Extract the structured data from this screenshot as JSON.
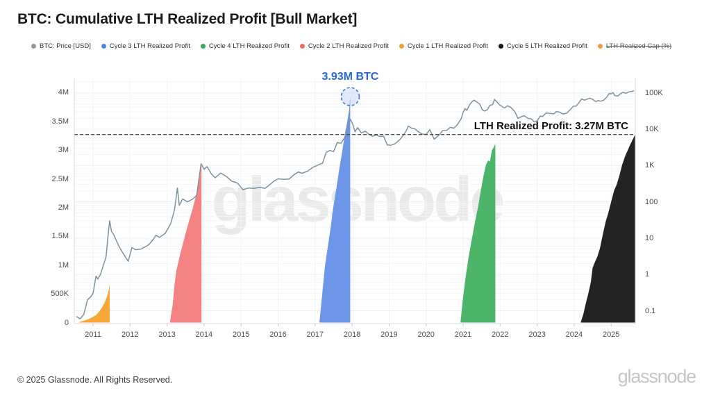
{
  "page": {
    "title": "BTC: Cumulative LTH Realized Profit [Bull Market]",
    "watermark": "glassnode",
    "footer_copyright": "© 2025 Glassnode. All Rights Reserved.",
    "footer_logo": "glassnode"
  },
  "legend": {
    "items": [
      {
        "label": "BTC: Price [USD]",
        "color": "#8b9aa3",
        "strikethrough": false
      },
      {
        "label": "Cycle 3 LTH Realized Profit",
        "color": "#4f86e4",
        "strikethrough": false
      },
      {
        "label": "Cycle 4 LTH Realized Profit",
        "color": "#33ad59",
        "strikethrough": false
      },
      {
        "label": "Cycle 2 LTH Realized Profit",
        "color": "#ee6c6c",
        "strikethrough": false
      },
      {
        "label": "Cycle 1 LTH Realized Profit",
        "color": "#f29d38",
        "strikethrough": false
      },
      {
        "label": "Cycle 5 LTH Realized Profit",
        "color": "#141414",
        "strikethrough": false
      },
      {
        "label": "LTH Realized Cap (%)",
        "color": "#f29d38",
        "strikethrough": true
      }
    ]
  },
  "chart_data": {
    "type": "area",
    "title": "BTC: Cumulative LTH Realized Profit [Bull Market]",
    "grid": true,
    "legend_position": "top",
    "x_axis": {
      "ticks": [
        2011,
        2012,
        2013,
        2014,
        2015,
        2016,
        2017,
        2018,
        2019,
        2020,
        2021,
        2022,
        2023,
        2024,
        2025
      ],
      "tick_labels": [
        "2011",
        "2012",
        "2013",
        "2014",
        "2015",
        "2016",
        "2017",
        "2018",
        "2019",
        "2020",
        "2021",
        "2022",
        "2023",
        "2024",
        "2025"
      ],
      "range": [
        2010.49,
        2025.66
      ]
    },
    "y_axis_left": {
      "unit": "BTC",
      "scale": "linear",
      "ticks": [
        0,
        0.5,
        1,
        1.5,
        2,
        2.5,
        3,
        3.5,
        4
      ],
      "tick_labels": [
        "0",
        "500K",
        "1M",
        "1.5M",
        "2M",
        "2.5M",
        "3M",
        "3.5M",
        "4M"
      ],
      "range_m": [
        0,
        4.26
      ]
    },
    "y_axis_right": {
      "unit": "USD",
      "scale": "log",
      "ticks": [
        0.1,
        1,
        10,
        100,
        1000,
        10000,
        100000
      ],
      "tick_labels": [
        "0.1",
        "1",
        "10",
        "100",
        "1K",
        "10K",
        "100K"
      ]
    },
    "annotations": {
      "peak_label": "3.93M BTC",
      "peak_point": {
        "year": 2017.95,
        "value_m": 3.93
      },
      "current_label": "LTH Realized Profit: 3.27M BTC",
      "current_value_m": 3.27,
      "dashed_line_color": "#3a3a3a",
      "peak_color": "#2766d2"
    },
    "price_series": {
      "name": "BTC: Price [USD]",
      "color": "#7e929d",
      "points": [
        [
          2010.55,
          0.07
        ],
        [
          2010.65,
          0.06
        ],
        [
          2010.75,
          0.08
        ],
        [
          2010.85,
          0.2
        ],
        [
          2010.95,
          0.25
        ],
        [
          2011.0,
          0.3
        ],
        [
          2011.08,
          0.9
        ],
        [
          2011.13,
          0.75
        ],
        [
          2011.2,
          1.0
        ],
        [
          2011.28,
          1.8
        ],
        [
          2011.35,
          3.0
        ],
        [
          2011.42,
          17
        ],
        [
          2011.45,
          30
        ],
        [
          2011.5,
          15
        ],
        [
          2011.55,
          13
        ],
        [
          2011.62,
          9
        ],
        [
          2011.7,
          6
        ],
        [
          2011.8,
          4
        ],
        [
          2011.95,
          2.3
        ],
        [
          2012.05,
          5.5
        ],
        [
          2012.15,
          4.8
        ],
        [
          2012.3,
          5.0
        ],
        [
          2012.5,
          6.5
        ],
        [
          2012.62,
          9
        ],
        [
          2012.7,
          12
        ],
        [
          2012.8,
          10.5
        ],
        [
          2012.95,
          13.5
        ],
        [
          2013.1,
          25
        ],
        [
          2013.2,
          60
        ],
        [
          2013.28,
          240
        ],
        [
          2013.33,
          80
        ],
        [
          2013.42,
          120
        ],
        [
          2013.55,
          100
        ],
        [
          2013.7,
          120
        ],
        [
          2013.8,
          150
        ],
        [
          2013.92,
          1120
        ],
        [
          2014.0,
          780
        ],
        [
          2014.08,
          930
        ],
        [
          2014.2,
          580
        ],
        [
          2014.3,
          460
        ],
        [
          2014.45,
          620
        ],
        [
          2014.6,
          500
        ],
        [
          2014.75,
          370
        ],
        [
          2014.9,
          330
        ],
        [
          2015.05,
          215
        ],
        [
          2015.2,
          240
        ],
        [
          2015.35,
          235
        ],
        [
          2015.5,
          250
        ],
        [
          2015.65,
          235
        ],
        [
          2015.8,
          310
        ],
        [
          2015.9,
          380
        ],
        [
          2016.0,
          430
        ],
        [
          2016.15,
          415
        ],
        [
          2016.3,
          425
        ],
        [
          2016.45,
          580
        ],
        [
          2016.55,
          660
        ],
        [
          2016.65,
          610
        ],
        [
          2016.8,
          700
        ],
        [
          2016.95,
          900
        ],
        [
          2017.1,
          1050
        ],
        [
          2017.2,
          1150
        ],
        [
          2017.3,
          2300
        ],
        [
          2017.4,
          2600
        ],
        [
          2017.5,
          2400
        ],
        [
          2017.6,
          4300
        ],
        [
          2017.7,
          4100
        ],
        [
          2017.78,
          5500
        ],
        [
          2017.85,
          7500
        ],
        [
          2017.95,
          19000
        ],
        [
          2018.02,
          13500
        ],
        [
          2018.08,
          8500
        ],
        [
          2018.15,
          11000
        ],
        [
          2018.25,
          7800
        ],
        [
          2018.35,
          8800
        ],
        [
          2018.45,
          7300
        ],
        [
          2018.55,
          6400
        ],
        [
          2018.65,
          6900
        ],
        [
          2018.75,
          6300
        ],
        [
          2018.85,
          6400
        ],
        [
          2018.95,
          3700
        ],
        [
          2019.05,
          3600
        ],
        [
          2019.15,
          3900
        ],
        [
          2019.3,
          5300
        ],
        [
          2019.45,
          8500
        ],
        [
          2019.52,
          12200
        ],
        [
          2019.6,
          10800
        ],
        [
          2019.7,
          10200
        ],
        [
          2019.8,
          8300
        ],
        [
          2019.9,
          7300
        ],
        [
          2020.0,
          7200
        ],
        [
          2020.1,
          9700
        ],
        [
          2020.22,
          5300
        ],
        [
          2020.35,
          6900
        ],
        [
          2020.45,
          9100
        ],
        [
          2020.55,
          9200
        ],
        [
          2020.65,
          11200
        ],
        [
          2020.75,
          10700
        ],
        [
          2020.85,
          13500
        ],
        [
          2020.95,
          19500
        ],
        [
          2021.0,
          29000
        ],
        [
          2021.05,
          37000
        ],
        [
          2021.1,
          33000
        ],
        [
          2021.18,
          48000
        ],
        [
          2021.25,
          58000
        ],
        [
          2021.3,
          63000
        ],
        [
          2021.38,
          55000
        ],
        [
          2021.45,
          49000
        ],
        [
          2021.52,
          34000
        ],
        [
          2021.58,
          31500
        ],
        [
          2021.65,
          34000
        ],
        [
          2021.72,
          45000
        ],
        [
          2021.8,
          48000
        ],
        [
          2021.85,
          66000
        ],
        [
          2021.9,
          58000
        ],
        [
          2021.98,
          47000
        ],
        [
          2022.05,
          42000
        ],
        [
          2022.12,
          38500
        ],
        [
          2022.2,
          44000
        ],
        [
          2022.3,
          39000
        ],
        [
          2022.4,
          30000
        ],
        [
          2022.48,
          20000
        ],
        [
          2022.55,
          21500
        ],
        [
          2022.65,
          23500
        ],
        [
          2022.75,
          20000
        ],
        [
          2022.85,
          19000
        ],
        [
          2022.92,
          16000
        ],
        [
          2023.0,
          16800
        ],
        [
          2023.08,
          23000
        ],
        [
          2023.15,
          22500
        ],
        [
          2023.25,
          28000
        ],
        [
          2023.35,
          27000
        ],
        [
          2023.45,
          26500
        ],
        [
          2023.52,
          30500
        ],
        [
          2023.6,
          29500
        ],
        [
          2023.7,
          26000
        ],
        [
          2023.8,
          27500
        ],
        [
          2023.9,
          35000
        ],
        [
          2023.98,
          43000
        ],
        [
          2024.05,
          43000
        ],
        [
          2024.12,
          52000
        ],
        [
          2024.2,
          68000
        ],
        [
          2024.28,
          63000
        ],
        [
          2024.35,
          67000
        ],
        [
          2024.42,
          71000
        ],
        [
          2024.5,
          66000
        ],
        [
          2024.58,
          58000
        ],
        [
          2024.65,
          61000
        ],
        [
          2024.72,
          59000
        ],
        [
          2024.8,
          63000
        ],
        [
          2024.88,
          76000
        ],
        [
          2024.95,
          97000
        ],
        [
          2025.0,
          94000
        ],
        [
          2025.05,
          102000
        ],
        [
          2025.1,
          84000
        ],
        [
          2025.18,
          82000
        ],
        [
          2025.25,
          95000
        ],
        [
          2025.32,
          104000
        ],
        [
          2025.4,
          97000
        ],
        [
          2025.48,
          107000
        ],
        [
          2025.55,
          109000
        ],
        [
          2025.62,
          115000
        ]
      ]
    },
    "cycles": [
      {
        "name": "Cycle 1 LTH Realized Profit",
        "color": "#f7a637",
        "points_m": [
          [
            2010.62,
            0.01
          ],
          [
            2010.75,
            0.03
          ],
          [
            2010.88,
            0.06
          ],
          [
            2011.0,
            0.1
          ],
          [
            2011.08,
            0.13
          ],
          [
            2011.15,
            0.18
          ],
          [
            2011.22,
            0.24
          ],
          [
            2011.3,
            0.33
          ],
          [
            2011.37,
            0.44
          ],
          [
            2011.42,
            0.55
          ],
          [
            2011.45,
            0.66
          ]
        ]
      },
      {
        "name": "Cycle 2 LTH Realized Profit",
        "color": "#f48282",
        "points_m": [
          [
            2013.08,
            0.02
          ],
          [
            2013.15,
            0.3
          ],
          [
            2013.2,
            0.65
          ],
          [
            2013.25,
            0.9
          ],
          [
            2013.32,
            1.1
          ],
          [
            2013.4,
            1.3
          ],
          [
            2013.5,
            1.55
          ],
          [
            2013.6,
            1.78
          ],
          [
            2013.7,
            2.0
          ],
          [
            2013.78,
            2.2
          ],
          [
            2013.85,
            2.42
          ],
          [
            2013.89,
            2.55
          ],
          [
            2013.93,
            2.78
          ]
        ]
      },
      {
        "name": "Cycle 3 LTH Realized Profit",
        "color": "#6e96e8",
        "points_m": [
          [
            2017.12,
            0.02
          ],
          [
            2017.2,
            0.55
          ],
          [
            2017.27,
            1.0
          ],
          [
            2017.35,
            1.35
          ],
          [
            2017.42,
            1.65
          ],
          [
            2017.49,
            2.0
          ],
          [
            2017.58,
            2.35
          ],
          [
            2017.66,
            2.7
          ],
          [
            2017.74,
            3.0
          ],
          [
            2017.81,
            3.3
          ],
          [
            2017.87,
            3.5
          ],
          [
            2017.92,
            3.7
          ],
          [
            2017.95,
            3.93
          ]
        ]
      },
      {
        "name": "Cycle 4 LTH Realized Profit",
        "color": "#4cb56a",
        "points_m": [
          [
            2020.93,
            0.02
          ],
          [
            2021.0,
            0.45
          ],
          [
            2021.08,
            0.85
          ],
          [
            2021.15,
            1.15
          ],
          [
            2021.25,
            1.5
          ],
          [
            2021.32,
            1.75
          ],
          [
            2021.4,
            2.0
          ],
          [
            2021.48,
            2.3
          ],
          [
            2021.55,
            2.55
          ],
          [
            2021.62,
            2.75
          ],
          [
            2021.68,
            2.82
          ],
          [
            2021.72,
            2.8
          ],
          [
            2021.78,
            3.0
          ],
          [
            2021.83,
            3.05
          ],
          [
            2021.87,
            3.11
          ]
        ]
      },
      {
        "name": "Cycle 5 LTH Realized Profit",
        "color": "#232323",
        "points_m": [
          [
            2024.18,
            0.01
          ],
          [
            2024.25,
            0.15
          ],
          [
            2024.32,
            0.35
          ],
          [
            2024.38,
            0.5
          ],
          [
            2024.45,
            0.7
          ],
          [
            2024.5,
            0.95
          ],
          [
            2024.56,
            1.05
          ],
          [
            2024.63,
            1.15
          ],
          [
            2024.7,
            1.3
          ],
          [
            2024.78,
            1.55
          ],
          [
            2024.85,
            1.75
          ],
          [
            2024.92,
            1.9
          ],
          [
            2025.0,
            2.1
          ],
          [
            2025.08,
            2.3
          ],
          [
            2025.15,
            2.4
          ],
          [
            2025.22,
            2.55
          ],
          [
            2025.3,
            2.75
          ],
          [
            2025.38,
            2.9
          ],
          [
            2025.45,
            3.0
          ],
          [
            2025.52,
            3.1
          ],
          [
            2025.58,
            3.18
          ],
          [
            2025.65,
            3.27
          ]
        ]
      }
    ]
  }
}
